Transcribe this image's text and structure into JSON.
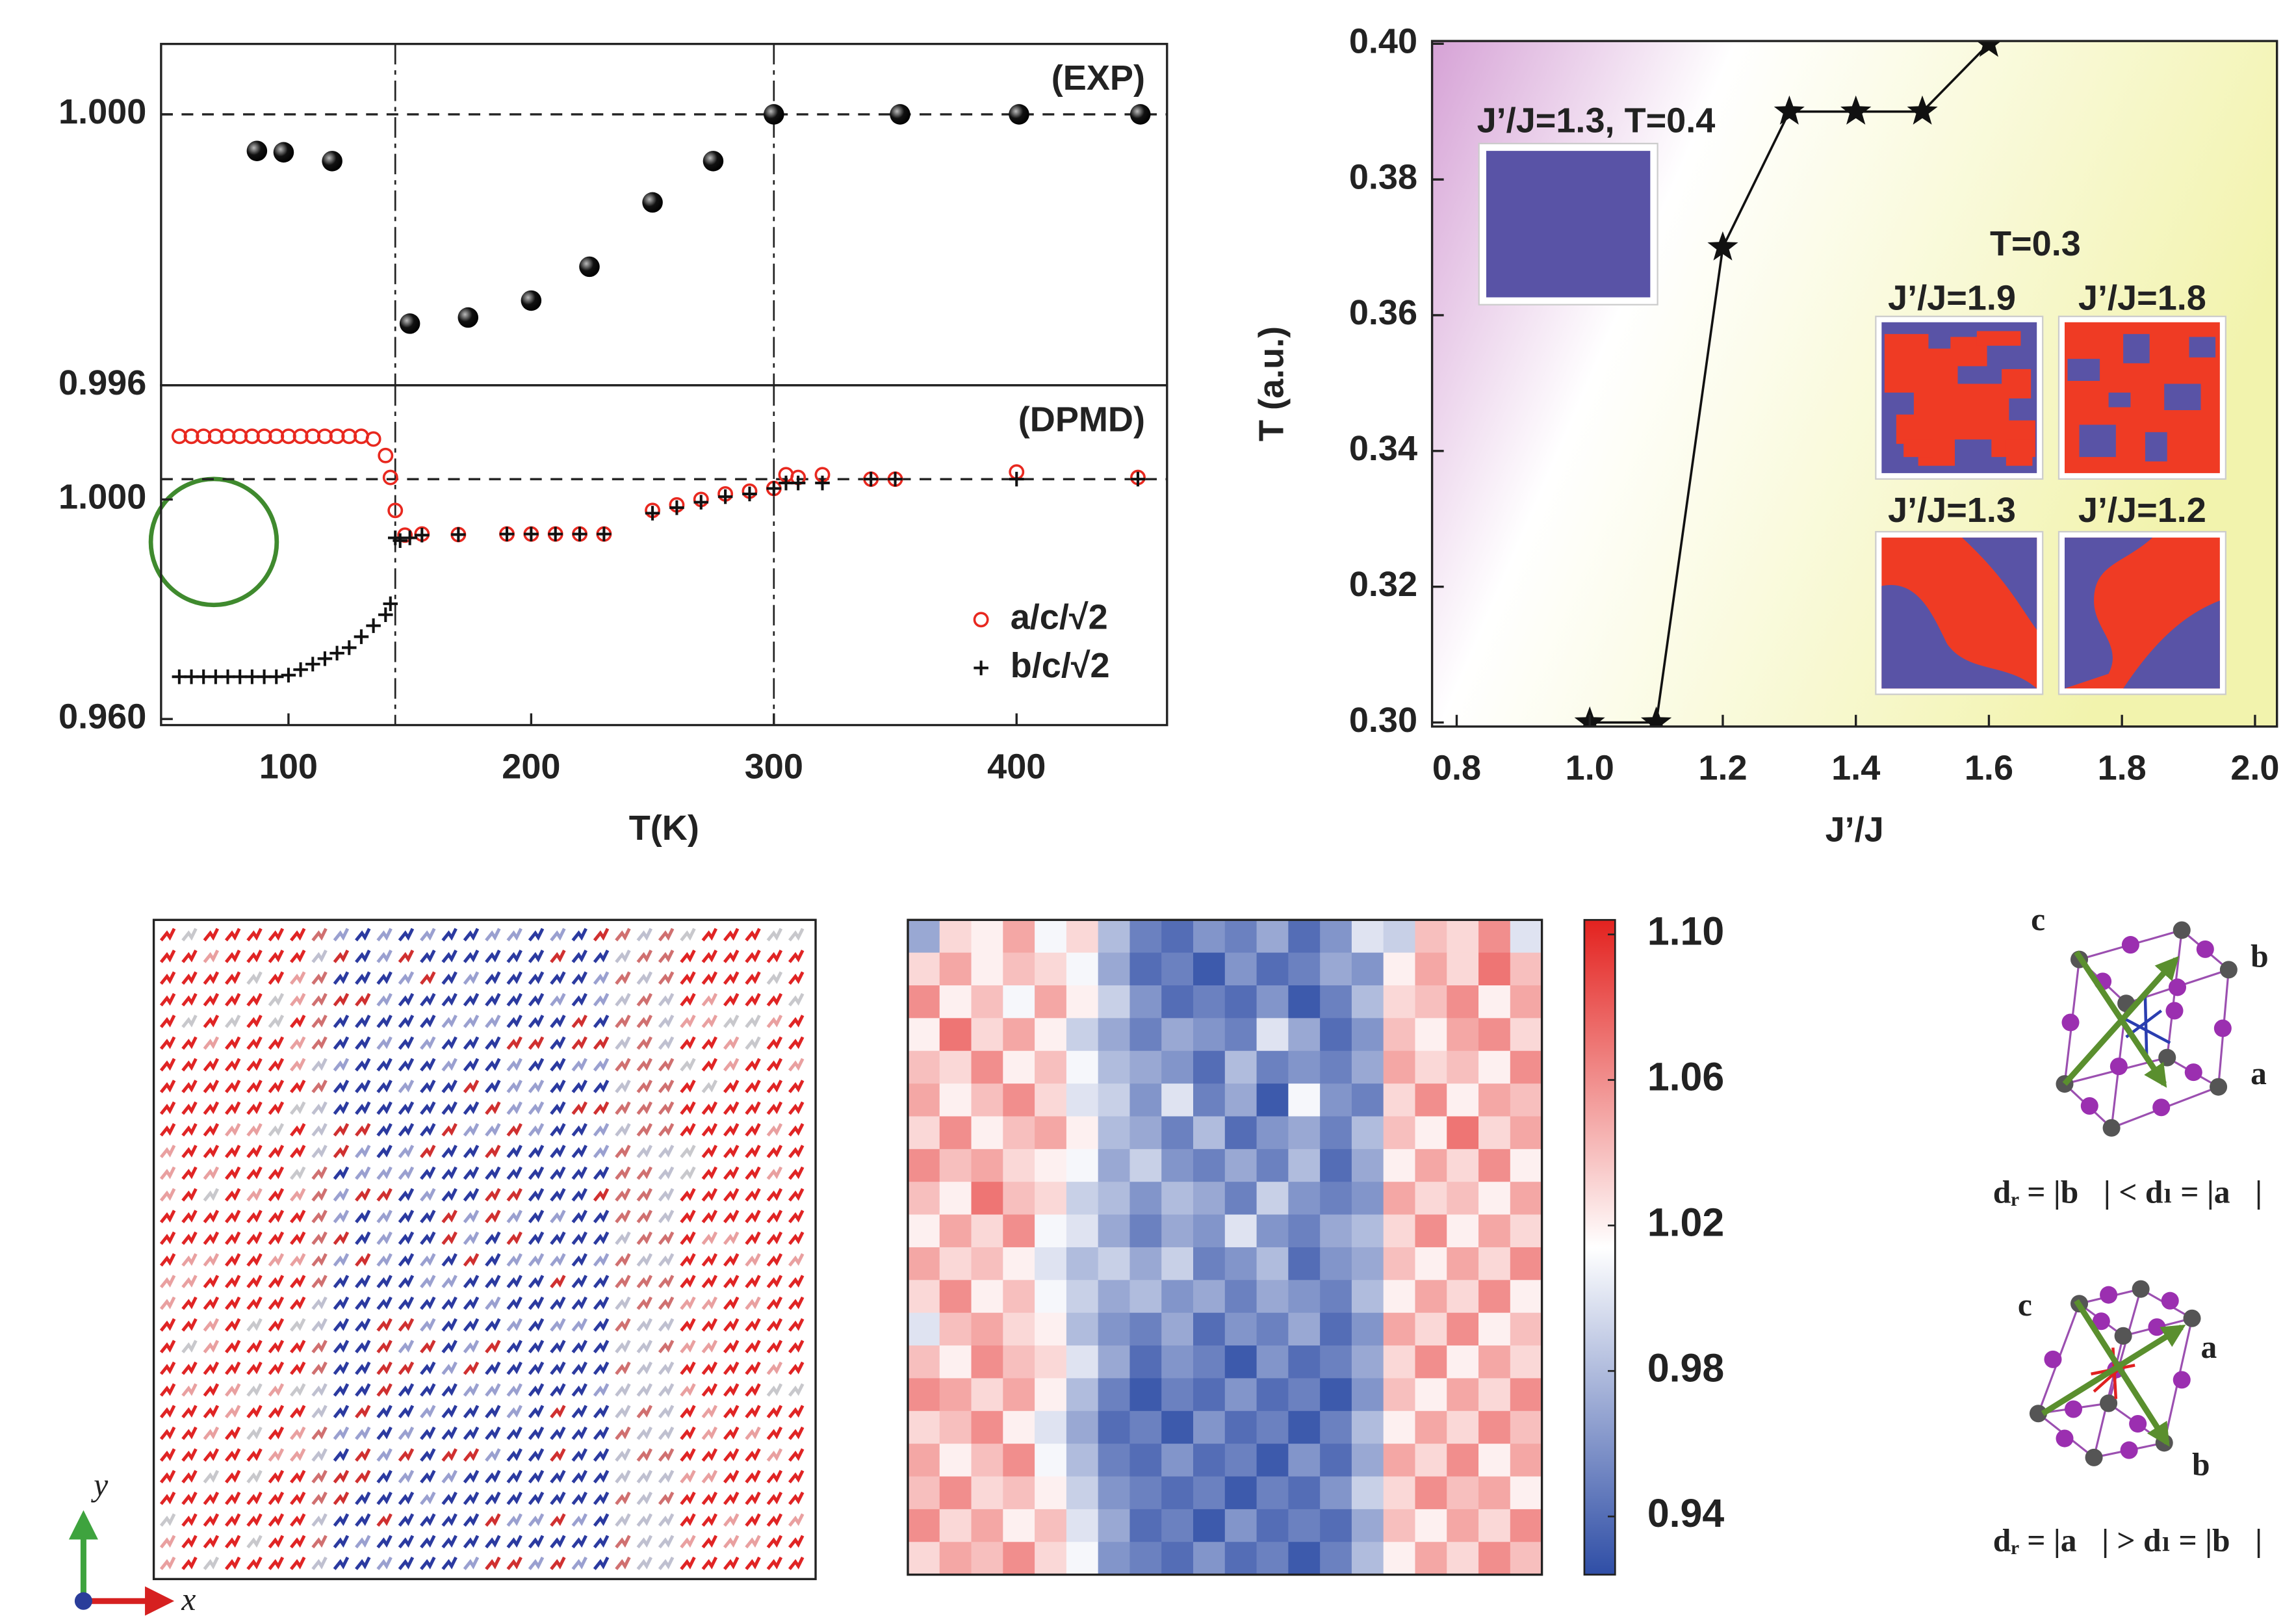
{
  "chart_data": [
    {
      "type": "scatter",
      "annotation": "(EXP)",
      "xlim": [
        47.5,
        462
      ],
      "ylim": [
        0.996,
        1.00104
      ],
      "yticks": [
        {
          "value": 1,
          "label": "1.000"
        },
        {
          "value": 0.996,
          "label": "0.996"
        }
      ],
      "hline": 1,
      "vlines": [
        144,
        300
      ],
      "color": "#111111",
      "x": [
        87,
        98,
        118,
        150,
        174,
        200,
        224,
        250,
        275,
        300,
        352,
        401,
        451
      ],
      "values": [
        0.99946,
        0.99944,
        0.99931,
        0.99691,
        0.997,
        0.99725,
        0.99775,
        0.9987,
        0.99931,
        1,
        1,
        1,
        1
      ]
    },
    {
      "type": "scatter",
      "annotation": "(DPMD)",
      "x_label": "T(K)",
      "xlim": [
        47.5,
        462
      ],
      "ylim": [
        0.9589,
        1.0208
      ],
      "xticks": [
        100,
        200,
        300,
        400
      ],
      "yticks": [
        {
          "value": 1,
          "label": "1.000"
        },
        {
          "value": 0.96,
          "label": "0.960"
        }
      ],
      "hline": 1.0037,
      "vlines": [
        144,
        300
      ],
      "series": [
        {
          "name": "a/c/√2",
          "color": "#e8281f",
          "marker": "circle",
          "x": [
            55,
            60,
            65,
            70,
            75,
            80,
            85,
            90,
            95,
            100,
            105,
            110,
            115,
            120,
            125,
            130,
            135,
            140,
            142,
            144,
            148,
            155,
            170,
            190,
            200,
            210,
            220,
            230,
            250,
            260,
            270,
            280,
            290,
            300,
            305,
            310,
            320,
            340,
            350,
            400,
            450
          ],
          "values": [
            1.0115,
            1.0115,
            1.0115,
            1.0115,
            1.0115,
            1.0115,
            1.0115,
            1.0115,
            1.0115,
            1.0115,
            1.0115,
            1.0115,
            1.0115,
            1.0115,
            1.0115,
            1.0115,
            1.011,
            1.008,
            1.004,
            0.998,
            0.9935,
            0.9937,
            0.9936,
            0.9937,
            0.9937,
            0.9937,
            0.9937,
            0.9937,
            0.998,
            0.999,
            1.0,
            1.001,
            1.0015,
            1.002,
            1.0045,
            1.004,
            1.0045,
            1.0037,
            1.0037,
            1.005,
            1.004
          ]
        },
        {
          "name": "b/c/√2",
          "color": "#111111",
          "marker": "plus",
          "x": [
            55,
            60,
            65,
            70,
            75,
            80,
            85,
            90,
            95,
            100,
            105,
            110,
            115,
            120,
            125,
            130,
            135,
            140,
            142,
            144,
            146,
            150,
            155,
            170,
            190,
            200,
            210,
            220,
            230,
            250,
            260,
            270,
            280,
            290,
            300,
            305,
            310,
            320,
            340,
            350,
            400,
            450
          ],
          "values": [
            0.9677,
            0.9677,
            0.9677,
            0.9677,
            0.9677,
            0.9677,
            0.9677,
            0.9677,
            0.9677,
            0.968,
            0.969,
            0.97,
            0.971,
            0.972,
            0.973,
            0.975,
            0.977,
            0.979,
            0.981,
            0.993,
            0.9925,
            0.993,
            0.9935,
            0.9936,
            0.9937,
            0.9937,
            0.9937,
            0.9937,
            0.9937,
            0.9975,
            0.9985,
            0.9995,
            1.0005,
            1.001,
            1.002,
            1.003,
            1.003,
            1.003,
            1.0037,
            1.0037,
            1.0037,
            1.0037
          ]
        }
      ]
    },
    {
      "type": "line",
      "x_label": "J’/J",
      "y_label": "T (a.u.)",
      "color": "#111111",
      "background": [
        "#d6a2d6",
        "#ffffff",
        "#f2f3ad"
      ],
      "xlim": [
        0.763,
        2.033
      ],
      "ylim": [
        0.2994,
        0.4004
      ],
      "xticks": [
        0.8,
        {
          "value": 1,
          "label": "1.0"
        },
        1.2,
        1.4,
        1.6,
        1.8,
        {
          "value": 2,
          "label": "2.0"
        }
      ],
      "yticks": [
        {
          "value": 0.3,
          "label": "0.30"
        },
        0.32,
        0.34,
        0.36,
        0.38,
        {
          "value": 0.4,
          "label": "0.40"
        }
      ],
      "x": [
        1.0,
        1.1,
        1.2,
        1.3,
        1.4,
        1.5,
        1.6
      ],
      "values": [
        0.3,
        0.3,
        0.37,
        0.39,
        0.39,
        0.39,
        0.4
      ],
      "annotations": [
        "J’/J=1.3, T=0.4",
        "T=0.3",
        "J’/J=1.9",
        "J’/J=1.8",
        "J’/J=1.3",
        "J’/J=1.2"
      ]
    },
    {
      "type": "heatmap",
      "colors": [
        "#2f4ea6",
        "#ffffff",
        "#e3221f"
      ],
      "zlim": [
        0.924,
        1.104
      ],
      "zticks": [
        {
          "value": 1.1,
          "label": "1.10"
        },
        1.06,
        1.02,
        0.98,
        0.94
      ],
      "values": [
        [
          0.97,
          1.03,
          1.02,
          1.05,
          1.01,
          1.03,
          0.98,
          0.95,
          0.94,
          0.96,
          0.95,
          0.97,
          0.94,
          0.96,
          1.0,
          0.99,
          1.04,
          1.03,
          1.06,
          1.0
        ],
        [
          1.03,
          1.05,
          1.02,
          1.04,
          1.03,
          1.01,
          0.97,
          0.94,
          0.95,
          0.93,
          0.96,
          0.94,
          0.95,
          0.97,
          0.96,
          1.02,
          1.05,
          1.03,
          1.07,
          1.04
        ],
        [
          1.06,
          1.02,
          1.04,
          1.01,
          1.05,
          1.02,
          0.99,
          0.96,
          0.94,
          0.95,
          0.94,
          0.96,
          0.93,
          0.95,
          0.98,
          1.03,
          1.04,
          1.06,
          1.02,
          1.05
        ],
        [
          1.02,
          1.07,
          1.03,
          1.05,
          1.02,
          0.99,
          0.97,
          0.95,
          0.97,
          0.96,
          0.95,
          1.0,
          0.97,
          0.94,
          0.96,
          1.04,
          1.02,
          1.05,
          1.06,
          1.03
        ],
        [
          1.04,
          1.03,
          1.06,
          1.02,
          1.04,
          1.01,
          0.98,
          0.97,
          0.96,
          0.94,
          0.98,
          0.95,
          0.96,
          0.95,
          0.97,
          1.05,
          1.03,
          1.04,
          1.02,
          1.06
        ],
        [
          1.05,
          1.02,
          1.04,
          1.06,
          1.03,
          1.0,
          0.99,
          0.96,
          1.0,
          0.95,
          0.97,
          0.93,
          1.01,
          0.96,
          0.95,
          1.03,
          1.06,
          1.02,
          1.05,
          1.04
        ],
        [
          1.03,
          1.06,
          1.02,
          1.04,
          1.05,
          1.02,
          0.98,
          0.97,
          0.95,
          0.98,
          0.94,
          0.96,
          0.97,
          0.95,
          0.98,
          1.04,
          1.02,
          1.07,
          1.03,
          1.05
        ],
        [
          1.06,
          1.04,
          1.05,
          1.03,
          1.02,
          1.01,
          0.97,
          0.99,
          0.96,
          0.95,
          0.97,
          0.95,
          0.98,
          0.94,
          0.97,
          1.02,
          1.05,
          1.03,
          1.06,
          1.02
        ],
        [
          1.04,
          1.02,
          1.07,
          1.04,
          1.03,
          0.99,
          0.98,
          0.96,
          0.98,
          0.97,
          0.95,
          0.99,
          0.96,
          0.95,
          0.96,
          1.05,
          1.03,
          1.04,
          1.02,
          1.05
        ],
        [
          1.02,
          1.05,
          1.03,
          1.06,
          1.01,
          1.0,
          0.97,
          0.95,
          0.97,
          0.96,
          1.0,
          0.96,
          0.95,
          0.97,
          0.98,
          1.03,
          1.06,
          1.02,
          1.05,
          1.03
        ],
        [
          1.05,
          1.03,
          1.04,
          1.02,
          1.0,
          0.98,
          0.99,
          0.97,
          0.99,
          0.95,
          0.96,
          0.98,
          0.94,
          0.96,
          0.97,
          1.04,
          1.02,
          1.05,
          1.03,
          1.06
        ],
        [
          1.03,
          1.06,
          1.02,
          1.04,
          1.01,
          0.99,
          0.97,
          0.98,
          0.96,
          0.97,
          0.95,
          0.97,
          0.96,
          0.95,
          0.98,
          1.02,
          1.05,
          1.03,
          1.06,
          1.02
        ],
        [
          1.0,
          1.04,
          1.05,
          1.03,
          1.02,
          0.98,
          0.96,
          0.95,
          0.97,
          0.94,
          0.96,
          0.95,
          0.97,
          0.94,
          0.96,
          1.05,
          1.03,
          1.06,
          1.02,
          1.04
        ],
        [
          1.04,
          1.02,
          1.06,
          1.04,
          1.03,
          1.0,
          0.97,
          0.94,
          0.96,
          0.95,
          0.93,
          0.96,
          0.94,
          0.95,
          0.97,
          1.03,
          1.06,
          1.02,
          1.05,
          1.03
        ],
        [
          1.06,
          1.05,
          1.03,
          1.05,
          1.02,
          0.98,
          0.95,
          0.93,
          0.95,
          0.94,
          0.96,
          0.94,
          0.95,
          0.93,
          0.96,
          1.04,
          1.02,
          1.05,
          1.03,
          1.06
        ],
        [
          1.03,
          1.04,
          1.06,
          1.02,
          1.0,
          0.97,
          0.94,
          0.95,
          0.93,
          0.96,
          0.94,
          0.95,
          0.93,
          0.95,
          0.98,
          1.02,
          1.05,
          1.03,
          1.06,
          1.04
        ],
        [
          1.05,
          1.02,
          1.04,
          1.06,
          1.01,
          0.98,
          0.95,
          0.94,
          0.96,
          0.94,
          0.95,
          0.93,
          0.96,
          0.94,
          0.97,
          1.05,
          1.03,
          1.06,
          1.02,
          1.05
        ],
        [
          1.04,
          1.06,
          1.03,
          1.04,
          1.02,
          0.99,
          0.96,
          0.95,
          0.94,
          0.95,
          0.93,
          0.95,
          0.94,
          0.96,
          0.99,
          1.03,
          1.06,
          1.04,
          1.05,
          1.02
        ],
        [
          1.06,
          1.03,
          1.05,
          1.02,
          1.04,
          1.0,
          0.97,
          0.94,
          0.95,
          0.93,
          0.96,
          0.94,
          0.95,
          0.94,
          0.97,
          1.04,
          1.02,
          1.05,
          1.03,
          1.06
        ],
        [
          1.03,
          1.05,
          1.04,
          1.06,
          1.03,
          1.01,
          0.96,
          0.95,
          0.94,
          0.96,
          0.94,
          0.95,
          0.93,
          0.95,
          0.98,
          1.02,
          1.05,
          1.03,
          1.06,
          1.04
        ]
      ]
    }
  ],
  "diagrams": {
    "field_axes": {
      "x": "x",
      "y": "y"
    },
    "crystal_top": {
      "c": "c⃗",
      "b": "b⃗",
      "a": "a⃗",
      "relation": "dᵣ = |b⃗| < dₗ = |a⃗|"
    },
    "crystal_bottom": {
      "c": "c⃗",
      "a": "a⃗",
      "b": "b⃗",
      "relation": "dᵣ = |a⃗| > dₗ = |b⃗|"
    }
  }
}
